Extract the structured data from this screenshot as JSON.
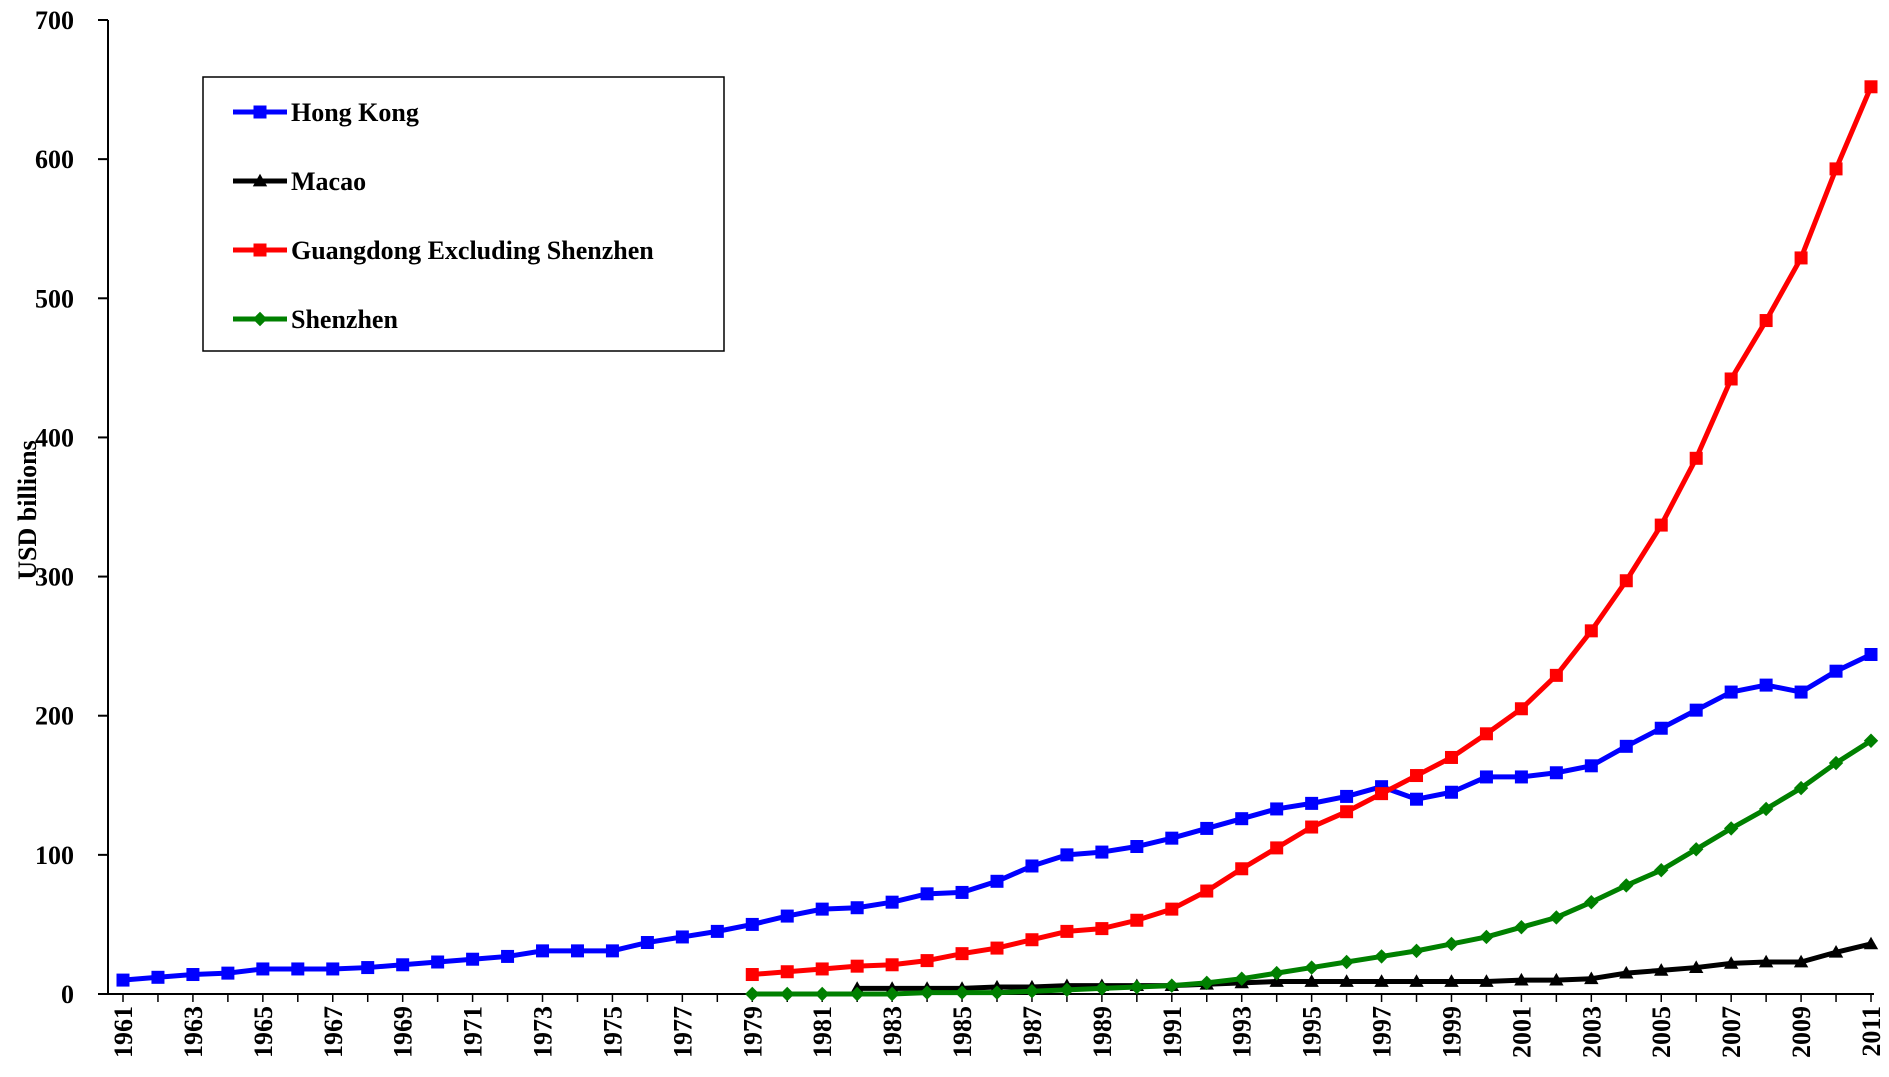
{
  "chart_data": {
    "type": "line",
    "ylabel": "USD billions",
    "xlabel": "",
    "ylim": [
      0,
      700
    ],
    "yticks": [
      0,
      100,
      200,
      300,
      400,
      500,
      600,
      700
    ],
    "xrange": [
      1961,
      2011
    ],
    "xtick_labels": [
      "1961",
      "1963",
      "1965",
      "1967",
      "1969",
      "1971",
      "1973",
      "1975",
      "1977",
      "1979",
      "1981",
      "1983",
      "1985",
      "1987",
      "1989",
      "1991",
      "1993",
      "1995",
      "1997",
      "1999",
      "2001",
      "2003",
      "2005",
      "2007",
      "2009",
      "2011"
    ],
    "grid": false,
    "legend_position": "top-left",
    "series": [
      {
        "name": "Hong Kong",
        "color": "#0000FF",
        "marker": "square",
        "x": [
          1961,
          1962,
          1963,
          1964,
          1965,
          1966,
          1967,
          1968,
          1969,
          1970,
          1971,
          1972,
          1973,
          1974,
          1975,
          1976,
          1977,
          1978,
          1979,
          1980,
          1981,
          1982,
          1983,
          1984,
          1985,
          1986,
          1987,
          1988,
          1989,
          1990,
          1991,
          1992,
          1993,
          1994,
          1995,
          1996,
          1997,
          1998,
          1999,
          2000,
          2001,
          2002,
          2003,
          2004,
          2005,
          2006,
          2007,
          2008,
          2009,
          2010,
          2011
        ],
        "values": [
          10,
          12,
          14,
          15,
          18,
          18,
          18,
          19,
          21,
          23,
          25,
          27,
          31,
          31,
          31,
          37,
          41,
          45,
          50,
          56,
          61,
          62,
          66,
          72,
          73,
          81,
          92,
          100,
          102,
          106,
          112,
          119,
          126,
          133,
          137,
          142,
          149,
          140,
          145,
          156,
          156,
          159,
          164,
          178,
          191,
          204,
          217,
          222,
          217,
          232,
          244
        ]
      },
      {
        "name": "Macao",
        "color": "#000000",
        "marker": "triangle",
        "x": [
          1982,
          1983,
          1984,
          1985,
          1986,
          1987,
          1988,
          1989,
          1990,
          1991,
          1992,
          1993,
          1994,
          1995,
          1996,
          1997,
          1998,
          1999,
          2000,
          2001,
          2002,
          2003,
          2004,
          2005,
          2006,
          2007,
          2008,
          2009,
          2010,
          2011
        ],
        "values": [
          4,
          4,
          4,
          4,
          5,
          5,
          6,
          6,
          6,
          6,
          7,
          8,
          9,
          9,
          9,
          9,
          9,
          9,
          9,
          10,
          10,
          11,
          15,
          17,
          19,
          22,
          23,
          23,
          30,
          36
        ]
      },
      {
        "name": "Guangdong Excluding Shenzhen",
        "color": "#FF0000",
        "marker": "square",
        "x": [
          1979,
          1980,
          1981,
          1982,
          1983,
          1984,
          1985,
          1986,
          1987,
          1988,
          1989,
          1990,
          1991,
          1992,
          1993,
          1994,
          1995,
          1996,
          1997,
          1998,
          1999,
          2000,
          2001,
          2002,
          2003,
          2004,
          2005,
          2006,
          2007,
          2008,
          2009,
          2010,
          2011
        ],
        "values": [
          14,
          16,
          18,
          20,
          21,
          24,
          29,
          33,
          39,
          45,
          47,
          53,
          61,
          74,
          90,
          105,
          120,
          131,
          144,
          157,
          170,
          187,
          205,
          229,
          261,
          297,
          337,
          385,
          442,
          484,
          529,
          593,
          652
        ]
      },
      {
        "name": "Shenzhen",
        "color": "#008000",
        "marker": "diamond",
        "x": [
          1979,
          1980,
          1981,
          1982,
          1983,
          1984,
          1985,
          1986,
          1987,
          1988,
          1989,
          1990,
          1991,
          1992,
          1993,
          1994,
          1995,
          1996,
          1997,
          1998,
          1999,
          2000,
          2001,
          2002,
          2003,
          2004,
          2005,
          2006,
          2007,
          2008,
          2009,
          2010,
          2011
        ],
        "values": [
          0,
          0,
          0,
          0,
          0,
          1,
          1,
          1,
          2,
          3,
          4,
          5,
          6,
          8,
          11,
          15,
          19,
          23,
          27,
          31,
          36,
          41,
          48,
          55,
          66,
          78,
          89,
          104,
          119,
          133,
          148,
          166,
          182
        ]
      }
    ]
  }
}
